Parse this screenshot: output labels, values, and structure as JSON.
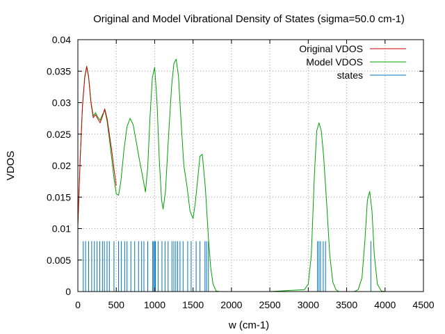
{
  "chart_data": {
    "type": "line",
    "title": "Original and Model Vibrational Density of States (sigma=50.0 cm-1)",
    "xlabel": "w (cm-1)",
    "ylabel": "VDOS",
    "xlim": [
      0,
      4500
    ],
    "ylim": [
      0,
      0.04
    ],
    "x_ticks": [
      "0",
      "500",
      "1000",
      "1500",
      "2000",
      "2500",
      "3000",
      "3500",
      "4000",
      "4500"
    ],
    "y_ticks": [
      "0",
      "0.005",
      "0.01",
      "0.015",
      "0.02",
      "0.025",
      "0.03",
      "0.035",
      "0.04"
    ],
    "grid": true,
    "legend_position": "top-right",
    "series": [
      {
        "name": "Original VDOS",
        "color": "#cc0000",
        "x": [
          0,
          30,
          60,
          90,
          115,
          140,
          170,
          200,
          230,
          260,
          290,
          320,
          350,
          380,
          410,
          440,
          470,
          500
        ],
        "y": [
          0.0105,
          0.021,
          0.0295,
          0.034,
          0.0357,
          0.034,
          0.03,
          0.0276,
          0.0281,
          0.0274,
          0.0268,
          0.0278,
          0.029,
          0.0275,
          0.025,
          0.0225,
          0.0195,
          0.0168
        ]
      },
      {
        "name": "Model VDOS",
        "color": "#00a000",
        "x": [
          0,
          30,
          60,
          90,
          115,
          140,
          170,
          200,
          230,
          260,
          290,
          320,
          350,
          380,
          410,
          440,
          470,
          500,
          530,
          560,
          600,
          640,
          680,
          720,
          760,
          800,
          840,
          880,
          910,
          940,
          970,
          1000,
          1030,
          1060,
          1090,
          1110,
          1140,
          1180,
          1220,
          1250,
          1280,
          1310,
          1340,
          1380,
          1420,
          1460,
          1500,
          1530,
          1560,
          1590,
          1620,
          1660,
          1700,
          1730,
          1760,
          1800,
          1840,
          1900,
          2000,
          2500,
          2950,
          3000,
          3040,
          3080,
          3110,
          3140,
          3170,
          3200,
          3240,
          3280,
          3320,
          3360,
          3400,
          3450,
          3500,
          3600,
          3650,
          3700,
          3740,
          3770,
          3800,
          3830,
          3860,
          3900,
          3950,
          4000,
          4500
        ],
        "y": [
          0.0105,
          0.021,
          0.0295,
          0.0342,
          0.0358,
          0.0342,
          0.0302,
          0.0279,
          0.0284,
          0.0277,
          0.0272,
          0.0281,
          0.0288,
          0.0271,
          0.0242,
          0.0212,
          0.018,
          0.0155,
          0.0153,
          0.0175,
          0.0225,
          0.0262,
          0.0275,
          0.0265,
          0.0238,
          0.021,
          0.0185,
          0.0158,
          0.0198,
          0.0278,
          0.034,
          0.0356,
          0.0302,
          0.021,
          0.0145,
          0.0131,
          0.0158,
          0.0245,
          0.0325,
          0.0362,
          0.0369,
          0.0342,
          0.0278,
          0.02,
          0.0168,
          0.0128,
          0.0116,
          0.0142,
          0.0178,
          0.0215,
          0.0218,
          0.0165,
          0.0085,
          0.0038,
          0.0012,
          0.0001,
          0,
          0,
          0,
          0,
          0.0003,
          0.0012,
          0.0058,
          0.0185,
          0.0255,
          0.0268,
          0.0255,
          0.0215,
          0.014,
          0.0058,
          0.0015,
          0.0003,
          0,
          0,
          0,
          0,
          0.0003,
          0.0022,
          0.0085,
          0.0145,
          0.0159,
          0.0128,
          0.0058,
          0.0012,
          0.0001,
          0,
          0
        ]
      },
      {
        "name": "states",
        "color": "#0072bd",
        "type": "impulse",
        "height": 0.008,
        "x": [
          70,
          100,
          140,
          180,
          215,
          250,
          285,
          320,
          345,
          380,
          410,
          470,
          530,
          565,
          610,
          640,
          690,
          740,
          790,
          830,
          860,
          910,
          975,
          985,
          1000,
          1010,
          1045,
          1095,
          1135,
          1175,
          1225,
          1250,
          1275,
          1300,
          1330,
          1370,
          1430,
          1475,
          1540,
          1590,
          1655,
          1675,
          1700,
          3120,
          3140,
          3160,
          3195,
          3225,
          3815
        ]
      }
    ]
  }
}
